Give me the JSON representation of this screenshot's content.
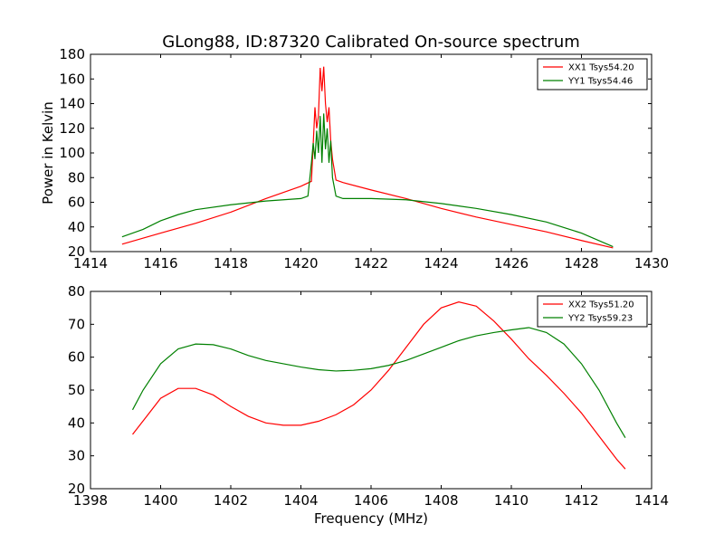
{
  "chart_data": [
    {
      "type": "line",
      "title": "GLong88, ID:87320 Calibrated On-source spectrum",
      "xlabel": "",
      "ylabel": "Power in Kelvin",
      "xlim": [
        1414,
        1430
      ],
      "ylim": [
        20,
        180
      ],
      "xticks": [
        1414,
        1416,
        1418,
        1420,
        1422,
        1424,
        1426,
        1428,
        1430
      ],
      "yticks": [
        20,
        40,
        60,
        80,
        100,
        120,
        140,
        160,
        180
      ],
      "legend_position": "top-right",
      "series": [
        {
          "name": "XX1 Tsys54.20",
          "color": "#ff0000",
          "points": [
            [
              1414.9,
              26
            ],
            [
              1416,
              35
            ],
            [
              1417,
              43
            ],
            [
              1418,
              52
            ],
            [
              1419,
              63
            ],
            [
              1420,
              73
            ],
            [
              1420.3,
              77
            ],
            [
              1420.4,
              137
            ],
            [
              1420.45,
              120
            ],
            [
              1420.5,
              130
            ],
            [
              1420.55,
              169
            ],
            [
              1420.6,
              150
            ],
            [
              1420.65,
              170
            ],
            [
              1420.7,
              140
            ],
            [
              1420.75,
              125
            ],
            [
              1420.8,
              137
            ],
            [
              1420.85,
              110
            ],
            [
              1420.9,
              95
            ],
            [
              1421.0,
              78
            ],
            [
              1421.2,
              76
            ],
            [
              1422,
              70
            ],
            [
              1423,
              63
            ],
            [
              1424,
              55
            ],
            [
              1425,
              48
            ],
            [
              1426,
              42
            ],
            [
              1427,
              36
            ],
            [
              1428,
              29
            ],
            [
              1428.9,
              23
            ]
          ]
        },
        {
          "name": "YY1 Tsys54.46",
          "color": "#008000",
          "points": [
            [
              1414.9,
              32
            ],
            [
              1415.5,
              38
            ],
            [
              1416,
              45
            ],
            [
              1416.5,
              50
            ],
            [
              1417,
              54
            ],
            [
              1418,
              58
            ],
            [
              1419,
              61
            ],
            [
              1420,
              63
            ],
            [
              1420.2,
              65
            ],
            [
              1420.3,
              92
            ],
            [
              1420.35,
              108
            ],
            [
              1420.4,
              95
            ],
            [
              1420.45,
              118
            ],
            [
              1420.5,
              100
            ],
            [
              1420.55,
              130
            ],
            [
              1420.6,
              92
            ],
            [
              1420.65,
              132
            ],
            [
              1420.7,
              103
            ],
            [
              1420.75,
              120
            ],
            [
              1420.8,
              92
            ],
            [
              1420.85,
              110
            ],
            [
              1420.9,
              80
            ],
            [
              1421,
              65
            ],
            [
              1421.2,
              63
            ],
            [
              1422,
              63
            ],
            [
              1423,
              62
            ],
            [
              1424,
              59
            ],
            [
              1425,
              55
            ],
            [
              1426,
              50
            ],
            [
              1427,
              44
            ],
            [
              1428,
              35
            ],
            [
              1428.9,
              24
            ]
          ]
        }
      ]
    },
    {
      "type": "line",
      "title": "",
      "xlabel": "Frequency (MHz)",
      "ylabel": "",
      "xlim": [
        1398,
        1414
      ],
      "ylim": [
        20,
        80
      ],
      "xticks": [
        1398,
        1400,
        1402,
        1404,
        1406,
        1408,
        1410,
        1412,
        1414
      ],
      "yticks": [
        20,
        30,
        40,
        50,
        60,
        70,
        80
      ],
      "legend_position": "top-right",
      "series": [
        {
          "name": "XX2 Tsys51.20",
          "color": "#ff0000",
          "points": [
            [
              1399.2,
              36.5
            ],
            [
              1399.6,
              42
            ],
            [
              1400,
              47.5
            ],
            [
              1400.5,
              50.5
            ],
            [
              1401,
              50.5
            ],
            [
              1401.5,
              48.5
            ],
            [
              1402,
              45
            ],
            [
              1402.5,
              42
            ],
            [
              1403,
              40
            ],
            [
              1403.5,
              39.3
            ],
            [
              1404,
              39.3
            ],
            [
              1404.5,
              40.5
            ],
            [
              1405,
              42.5
            ],
            [
              1405.5,
              45.5
            ],
            [
              1406,
              50
            ],
            [
              1406.5,
              56
            ],
            [
              1407,
              63
            ],
            [
              1407.5,
              70
            ],
            [
              1408,
              75
            ],
            [
              1408.5,
              76.8
            ],
            [
              1409,
              75.5
            ],
            [
              1409.5,
              71
            ],
            [
              1410,
              65.5
            ],
            [
              1410.5,
              59.5
            ],
            [
              1411,
              54.5
            ],
            [
              1411.5,
              49
            ],
            [
              1412,
              43
            ],
            [
              1412.5,
              36
            ],
            [
              1413,
              29
            ],
            [
              1413.25,
              26
            ]
          ]
        },
        {
          "name": "YY2 Tsys59.23",
          "color": "#008000",
          "points": [
            [
              1399.2,
              44
            ],
            [
              1399.5,
              50
            ],
            [
              1400,
              58
            ],
            [
              1400.5,
              62.5
            ],
            [
              1401,
              64
            ],
            [
              1401.5,
              63.8
            ],
            [
              1402,
              62.5
            ],
            [
              1402.5,
              60.5
            ],
            [
              1403,
              59
            ],
            [
              1403.5,
              58
            ],
            [
              1404,
              57
            ],
            [
              1404.5,
              56.2
            ],
            [
              1405,
              55.8
            ],
            [
              1405.5,
              56
            ],
            [
              1406,
              56.5
            ],
            [
              1406.5,
              57.5
            ],
            [
              1407,
              59
            ],
            [
              1407.5,
              61
            ],
            [
              1408,
              63
            ],
            [
              1408.5,
              65
            ],
            [
              1409,
              66.5
            ],
            [
              1409.5,
              67.5
            ],
            [
              1410,
              68.3
            ],
            [
              1410.5,
              69
            ],
            [
              1411,
              67.5
            ],
            [
              1411.5,
              64
            ],
            [
              1412,
              58
            ],
            [
              1412.5,
              50
            ],
            [
              1413,
              40
            ],
            [
              1413.25,
              35.5
            ]
          ]
        }
      ]
    }
  ]
}
